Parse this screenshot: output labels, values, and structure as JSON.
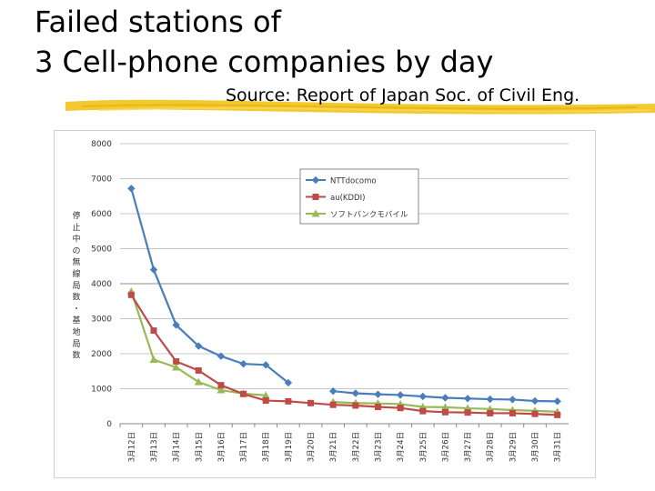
{
  "slide": {
    "title_line1": "Failed stations of",
    "title_line2": "3 Cell-phone companies by day",
    "source": "Source: Report of Japan Soc. of Civil Eng."
  },
  "colors": {
    "underline": "#f2c31b"
  },
  "chart_data": {
    "type": "line",
    "title": "",
    "xlabel": "",
    "ylabel": "停止中の無線局数・基地局数",
    "ylim": [
      0,
      8000
    ],
    "yticks": [
      0,
      1000,
      2000,
      3000,
      4000,
      5000,
      6000,
      7000,
      8000
    ],
    "grid": true,
    "legend_position": "top-right",
    "categories": [
      "3月12日",
      "3月13日",
      "3月14日",
      "3月15日",
      "3月16日",
      "3月17日",
      "3月18日",
      "3月19日",
      "3月20日",
      "3月21日",
      "3月22日",
      "3月23日",
      "3月24日",
      "3月25日",
      "3月26日",
      "3月27日",
      "3月28日",
      "3月29日",
      "3月30日",
      "3月31日"
    ],
    "series": [
      {
        "name": "NTTdocomo",
        "color": "#4a7ebb",
        "marker": "diamond",
        "values": [
          6720,
          4400,
          2820,
          2220,
          1930,
          1710,
          1680,
          1170,
          null,
          930,
          870,
          840,
          820,
          780,
          740,
          720,
          700,
          690,
          650,
          640
        ]
      },
      {
        "name": "au(KDDI)",
        "color": "#be4b48",
        "marker": "square",
        "values": [
          3680,
          2660,
          1780,
          1520,
          1100,
          850,
          660,
          640,
          590,
          540,
          520,
          480,
          450,
          360,
          330,
          320,
          300,
          300,
          280,
          250
        ]
      },
      {
        "name": "ソフトバンクモバイル",
        "color": "#98b954",
        "marker": "triangle",
        "values": [
          3780,
          1830,
          1610,
          1190,
          960,
          860,
          810,
          null,
          null,
          620,
          590,
          580,
          560,
          480,
          470,
          440,
          420,
          390,
          370,
          340
        ]
      }
    ]
  }
}
